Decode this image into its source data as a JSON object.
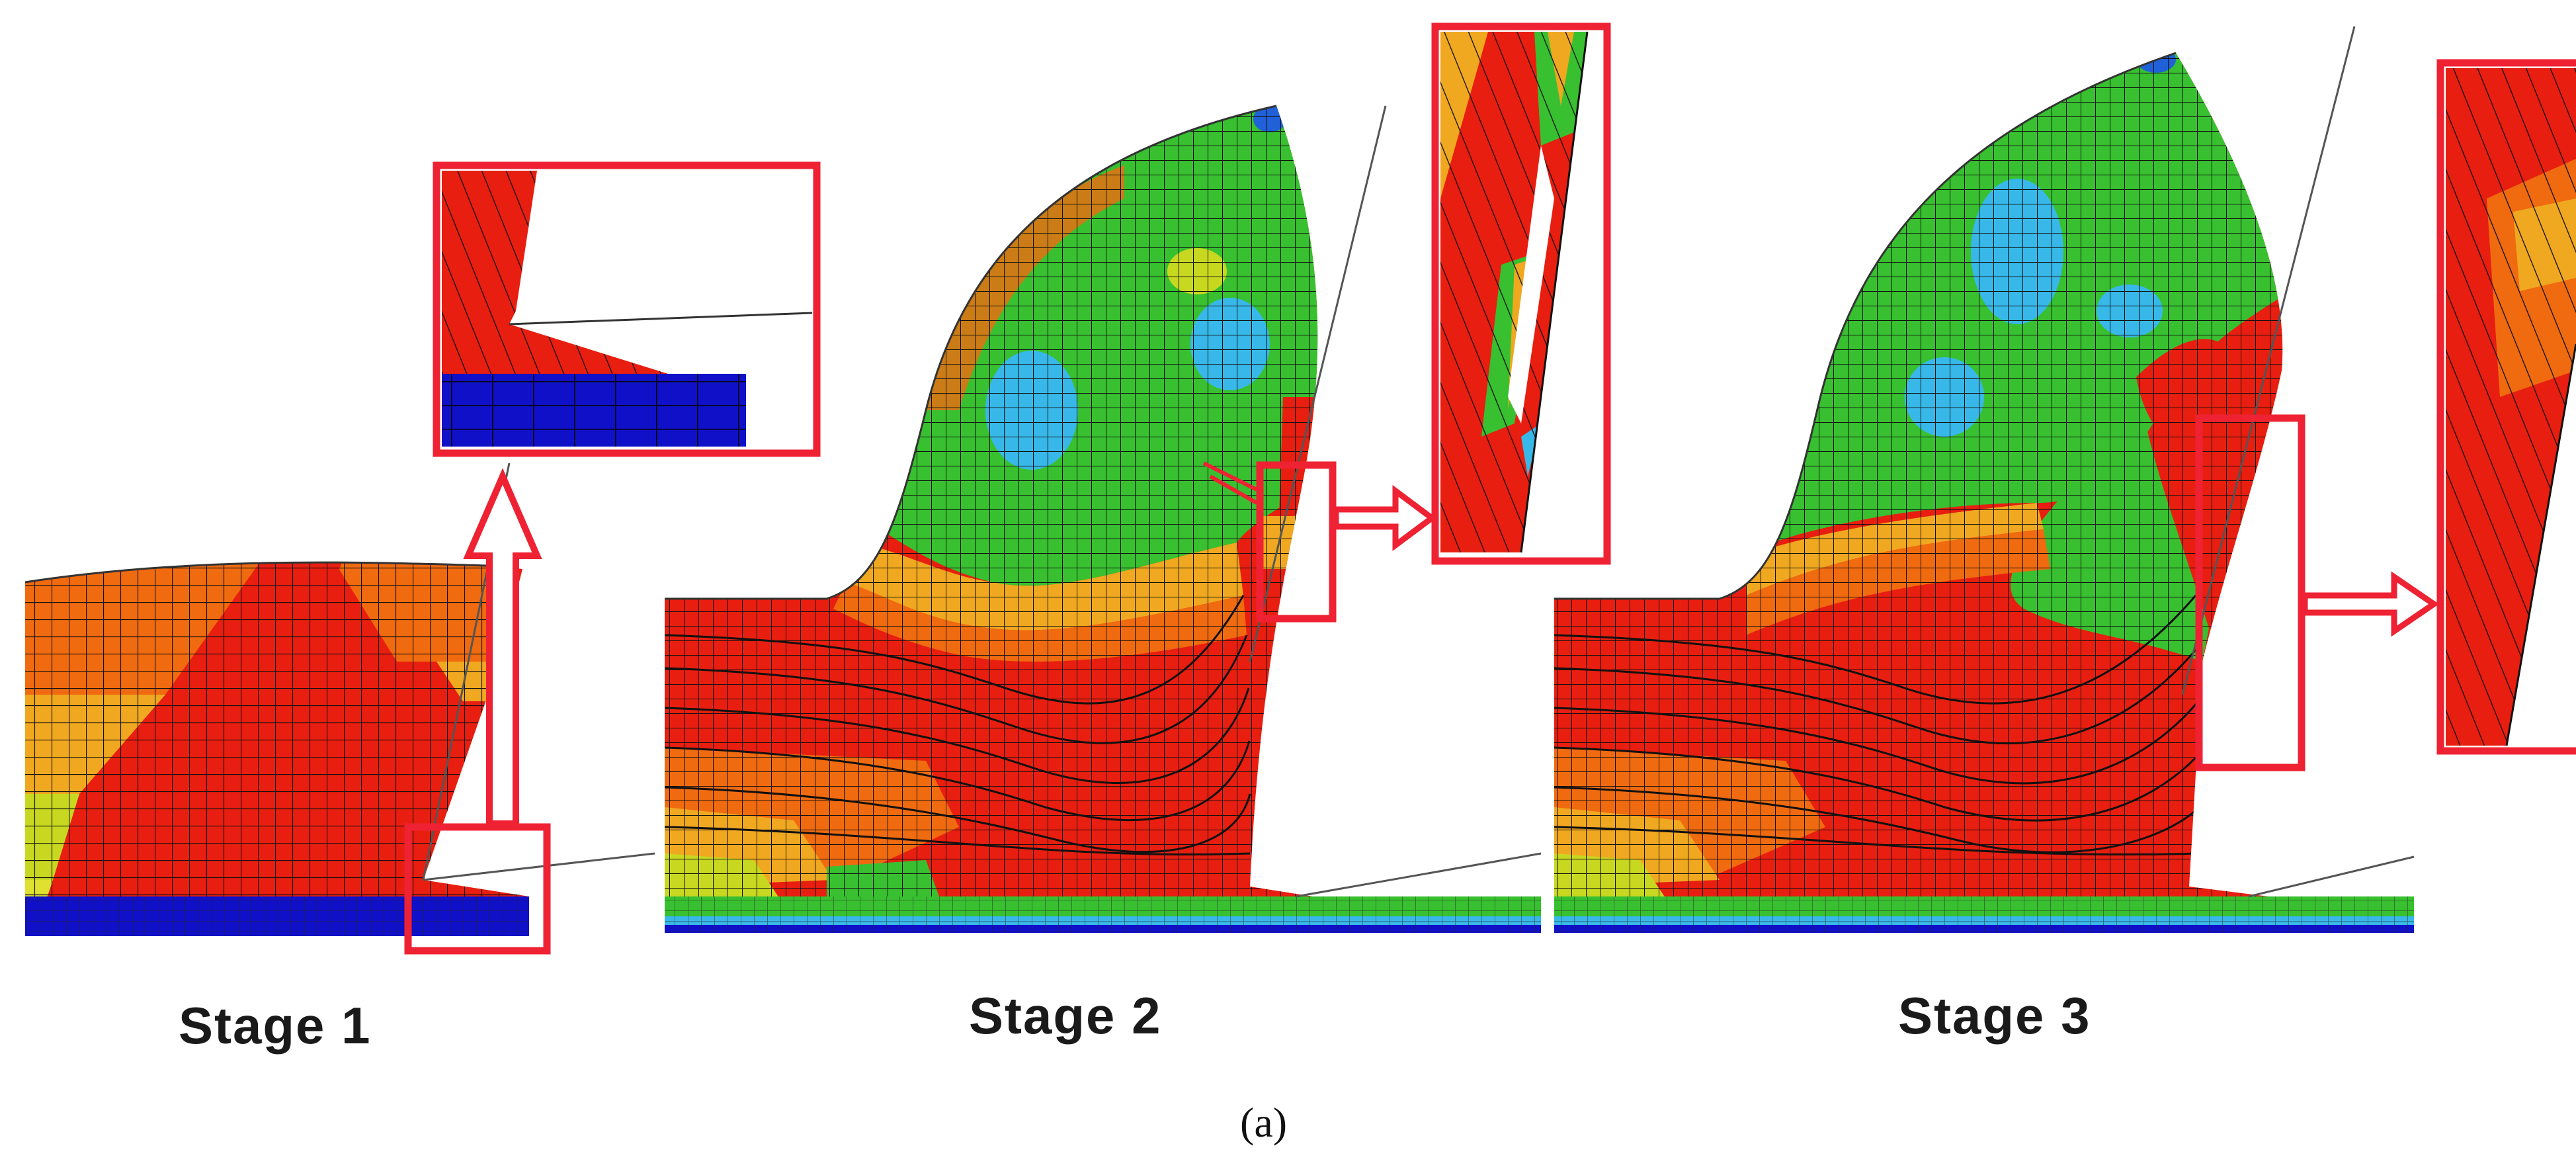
{
  "figure": {
    "stages": [
      {
        "label": "Stage 1"
      },
      {
        "label": "Stage 2"
      },
      {
        "label": "Stage 3"
      }
    ],
    "caption": "(a)"
  },
  "colors": {
    "highlight_box": "#ee2233",
    "die": "#1010c8",
    "high_strain": "#e81e10",
    "mid_high_strain": "#f06a10",
    "mid_strain": "#f0a820",
    "low_mid_strain": "#c8d820",
    "low_strain": "#38c030",
    "lowest_strain": "#38b8e8",
    "mesh_line": "#111111"
  }
}
